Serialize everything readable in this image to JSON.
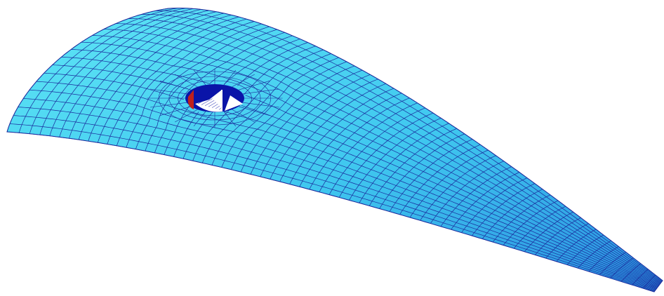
{
  "diagram": {
    "kind": "wing surface mesh with nacelle cutout",
    "colors": {
      "background": "#ffffff",
      "surface_light": "#5ee6f5",
      "surface_mid": "#3fc7ef",
      "surface_dark": "#2a8fe0",
      "mesh_lines": "#1a2a9c",
      "cutout_fill": "#0a14a8",
      "cutout_highlight": "#c0201c",
      "cutout_inner": "#ffffff"
    },
    "mesh": {
      "spanwise_stations": 64,
      "chordwise_stations": 18
    }
  }
}
